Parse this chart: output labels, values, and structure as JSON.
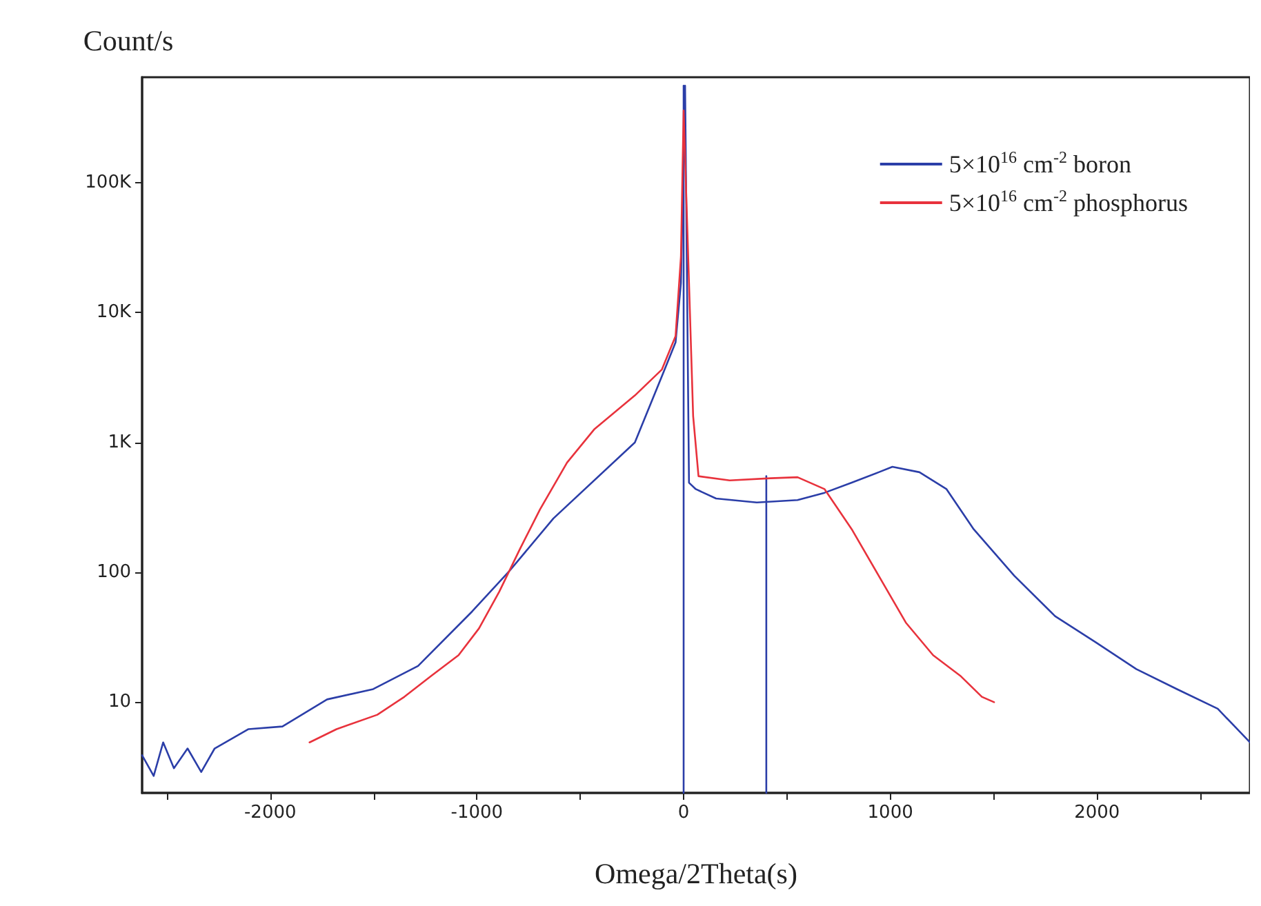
{
  "chart_data": {
    "type": "line",
    "xlabel": "Omega/2Theta(s)",
    "ylabel": "Count/s",
    "log": "y",
    "grid": false,
    "legend": "top right",
    "marker": "none",
    "line_style": "solid",
    "xlim": [
      -2620,
      2740
    ],
    "xticks": [
      {
        "value": -2500,
        "label": null
      },
      -2000,
      {
        "value": -1500,
        "label": null
      },
      -1000,
      {
        "value": -500,
        "label": null
      },
      0,
      {
        "value": 500,
        "label": null
      },
      1000,
      {
        "value": 1500,
        "label": null
      },
      2000,
      {
        "value": 2500,
        "label": null
      }
    ],
    "ylim": [
      2,
      650000
    ],
    "yticks": [
      10,
      100,
      {
        "value": 1000,
        "label": "1K"
      },
      {
        "value": 10000,
        "label": "10K"
      },
      {
        "value": 100000,
        "label": "100K"
      }
    ],
    "series": [
      {
        "name": "5×10$^{16}$ cm$^{-2}$ boron",
        "color": "#2b3ea8",
        "x": [
          -2620,
          -2564,
          -2518,
          -2466,
          -2400,
          -2334,
          -2269,
          -2105,
          -1941,
          -1725,
          -1502,
          -1285,
          -1023,
          -846,
          -630,
          -236,
          -105,
          -39,
          -13,
          7,
          26,
          59,
          157,
          354,
          551,
          682,
          813,
          944,
          1010,
          1141,
          1272,
          1403,
          1600,
          1797,
          1993,
          2190,
          2387,
          2584,
          2740
        ],
        "values": [
          3.9,
          2.7,
          4.9,
          3.1,
          4.4,
          2.9,
          4.4,
          6.2,
          6.5,
          10.5,
          12.6,
          19,
          50,
          101,
          260,
          1000,
          3240,
          5900,
          17000,
          560000,
          490,
          437,
          370,
          345,
          360,
          410,
          490,
          590,
          650,
          590,
          437,
          215,
          94,
          46,
          29,
          18,
          12.6,
          8.9,
          4.9
        ]
      },
      {
        "name": "5×10$^{16}$ cm$^{-2}$ phosphorus",
        "color": "#e8323c",
        "x": [
          -1810,
          -1679,
          -1482,
          -1351,
          -1220,
          -1089,
          -990,
          -892,
          -793,
          -695,
          -564,
          -433,
          -236,
          -105,
          -39,
          -13,
          0,
          26,
          46,
          72,
          223,
          420,
          551,
          682,
          813,
          944,
          1075,
          1207,
          1338,
          1443,
          1502
        ],
        "values": [
          4.9,
          6.2,
          8,
          11,
          16,
          23,
          37,
          71,
          150,
          305,
          700,
          1260,
          2300,
          3650,
          6600,
          27000,
          360000,
          17000,
          1600,
          550,
          510,
          530,
          540,
          437,
          215,
          94,
          41,
          23,
          16,
          11,
          10
        ]
      },
      {
        "color": "#2b3ea8",
        "x": [
          0,
          0
        ],
        "values": [
          2,
          560000
        ]
      },
      {
        "color": "#2b3ea8",
        "x": [
          400,
          400
        ],
        "values": [
          2,
          550
        ]
      }
    ]
  }
}
